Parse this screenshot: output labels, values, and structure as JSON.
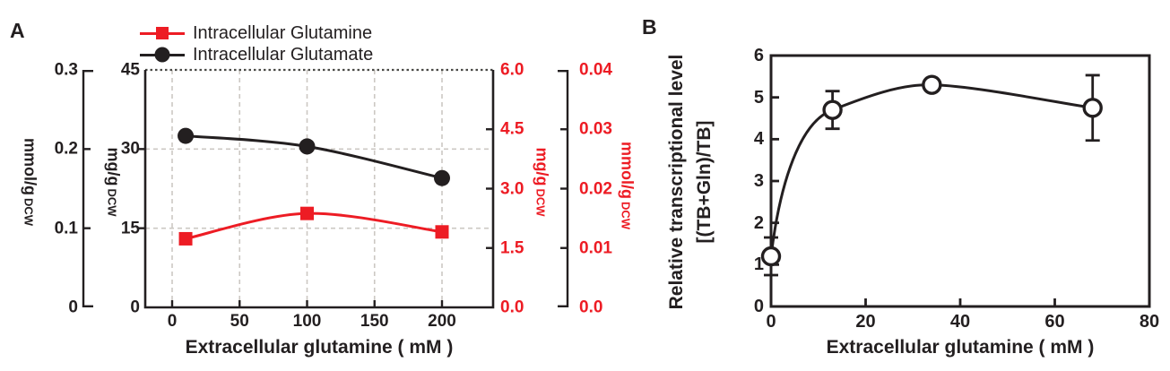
{
  "colors": {
    "red": "#ed1c24",
    "ink": "#231f20",
    "grid_gray": "#ccc8c3"
  },
  "chart_data": [
    {
      "type": "line",
      "panel": "A",
      "xlabel": "Extracellular glutamine ( mM )",
      "xlim": [
        -20,
        238
      ],
      "x_ticks": [
        0,
        50,
        100,
        150,
        200
      ],
      "x_tick_labels": [
        "0",
        "50",
        "100",
        "150",
        "200"
      ],
      "grid": {
        "style": "dashed-gray",
        "top_frame": "dotted",
        "vertical_at_x": [
          0,
          50,
          100,
          150,
          200
        ],
        "horizontal_at_left_mg": [
          15,
          30,
          45
        ]
      },
      "y_axes": [
        {
          "id": "outer_left",
          "kind": "floating",
          "ink": "#231f20",
          "title_main": "mmol/g",
          "title_sub": "DCW",
          "tick_labels": [
            "0.3",
            "0.2",
            "0.1",
            "0"
          ],
          "tick_values": [
            0.3,
            0.2,
            0.1,
            0
          ],
          "lim": [
            0,
            0.3
          ]
        },
        {
          "id": "inner_left",
          "kind": "frame",
          "ink": "#231f20",
          "title_main": "mg/g",
          "title_sub": "DCW",
          "tick_labels": [
            "45",
            "30",
            "15",
            "0"
          ],
          "tick_values": [
            45,
            30,
            15,
            0
          ],
          "lim": [
            0,
            45
          ]
        },
        {
          "id": "inner_right",
          "kind": "frame",
          "ink": "#ed1c24",
          "title_main": "mg/g",
          "title_sub": "DCW",
          "tick_labels": [
            "6.0",
            "4.5",
            "3.0",
            "1.5",
            "0.0"
          ],
          "tick_values": [
            6,
            4.5,
            3,
            1.5,
            0
          ],
          "lim": [
            0,
            6
          ]
        },
        {
          "id": "outer_right",
          "kind": "floating",
          "ink": "#ed1c24",
          "title_main": "mmol/g",
          "title_sub": "DCW",
          "tick_labels": [
            "0.04",
            "0.03",
            "0.02",
            "0.01",
            "0.0"
          ],
          "tick_values": [
            0.04,
            0.03,
            0.02,
            0.01,
            0
          ],
          "lim": [
            0,
            0.04
          ]
        }
      ],
      "legend": [
        {
          "label": "Intracellular Glutamine",
          "marker": "filled-square",
          "color": "#ed1c24"
        },
        {
          "label": "Intracellular Glutamate",
          "marker": "filled-circle",
          "color": "#231f20"
        }
      ],
      "series": [
        {
          "name": "Intracellular Glutamine",
          "marker": "square",
          "color": "#ed1c24",
          "y_scale": "mg/g DCW (left, 0-45)",
          "x": [
            10,
            100,
            200
          ],
          "y": [
            13.0,
            17.8,
            14.3
          ]
        },
        {
          "name": "Intracellular Glutamate",
          "marker": "circle",
          "color": "#231f20",
          "y_scale": "mg/g DCW (left, 0-45)",
          "x": [
            10,
            100,
            200
          ],
          "y": [
            32.5,
            30.5,
            24.5
          ]
        }
      ]
    },
    {
      "type": "line",
      "panel": "B",
      "xlabel": "Extracellular glutamine ( mM )",
      "ylabel_line1": "Relative transcriptional level",
      "ylabel_line2": "[(TB+Gln)/TB]",
      "xlim": [
        0,
        80
      ],
      "ylim": [
        0,
        6
      ],
      "x_ticks": [
        0,
        20,
        40,
        60,
        80
      ],
      "x_tick_labels": [
        "0",
        "20",
        "40",
        "60",
        "80"
      ],
      "y_ticks": [
        0,
        1,
        2,
        3,
        4,
        5,
        6
      ],
      "y_tick_labels": [
        "0",
        "1",
        "2",
        "3",
        "4",
        "5",
        "6"
      ],
      "series": [
        {
          "name": "(TB+Gln)/TB",
          "marker": "open-circle",
          "color": "#231f20",
          "x": [
            0,
            13,
            34,
            68
          ],
          "y": [
            1.2,
            4.7,
            5.3,
            4.75
          ],
          "y_err": [
            0.45,
            0.45,
            0.12,
            0.78
          ]
        }
      ]
    }
  ]
}
